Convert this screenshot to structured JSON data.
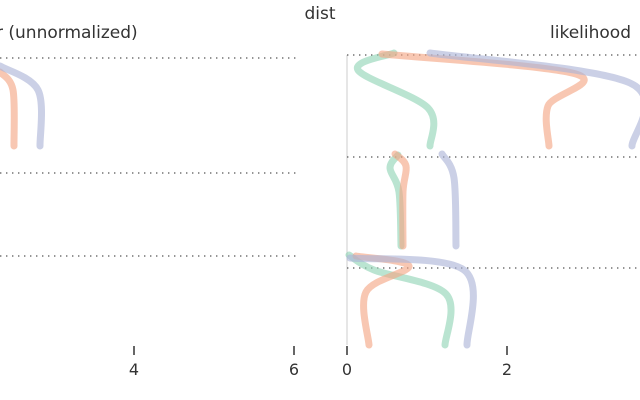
{
  "chart_data": {
    "type": "line",
    "super_title": "dist",
    "panels": [
      {
        "id": "left",
        "title": "r (unnormalized)",
        "x_ticks": [
          4,
          6
        ],
        "guides_y": [
          58,
          173,
          256
        ],
        "curves": [
          {
            "color": "#f4a582",
            "points": [
              [
                0,
                72
              ],
              [
                13,
                90
              ],
              [
                14,
                146
              ]
            ]
          },
          {
            "color": "#abb3d6",
            "points": [
              [
                0,
                66
              ],
              [
                38,
                90
              ],
              [
                40,
                146
              ]
            ]
          }
        ]
      },
      {
        "id": "right",
        "title": "likelihood",
        "x_ticks": [
          0,
          2
        ],
        "guides_y": [
          55,
          157,
          268
        ],
        "curves": [
          {
            "color": "#8fd4b4",
            "points": [
              [
                394,
                53
              ],
              [
                358,
                70
              ],
              [
                428,
                108
              ],
              [
                430,
                146
              ]
            ]
          },
          {
            "color": "#f4a582",
            "points": [
              [
                382,
                54
              ],
              [
                576,
                74
              ],
              [
                548,
                106
              ],
              [
                549,
                146
              ]
            ]
          },
          {
            "color": "#abb3d6",
            "points": [
              [
                430,
                53
              ],
              [
                630,
                83
              ],
              [
                632,
                146
              ]
            ]
          },
          {
            "color": "#8fd4b4",
            "points": [
              [
                398,
                155
              ],
              [
                390,
                168
              ],
              [
                399,
                192
              ],
              [
                401,
                246
              ]
            ]
          },
          {
            "color": "#f4a582",
            "points": [
              [
                395,
                154
              ],
              [
                406,
                166
              ],
              [
                403,
                192
              ],
              [
                403,
                246
              ]
            ]
          },
          {
            "color": "#abb3d6",
            "points": [
              [
                442,
                154
              ],
              [
                454,
                178
              ],
              [
                456,
                246
              ]
            ]
          },
          {
            "color": "#8fd4b4",
            "points": [
              [
                349,
                255
              ],
              [
                374,
                270
              ],
              [
                446,
                294
              ],
              [
                445,
                345
              ]
            ]
          },
          {
            "color": "#f4a582",
            "points": [
              [
                356,
                256
              ],
              [
                409,
                266
              ],
              [
                366,
                292
              ],
              [
                369,
                345
              ]
            ]
          },
          {
            "color": "#abb3d6",
            "points": [
              [
                350,
                258
              ],
              [
                464,
                270
              ],
              [
                467,
                345
              ]
            ]
          }
        ]
      }
    ]
  }
}
